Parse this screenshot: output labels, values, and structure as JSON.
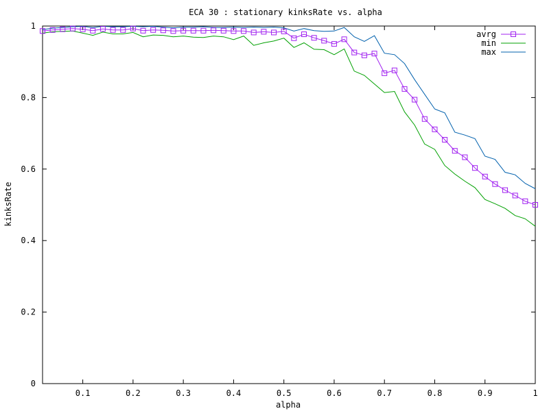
{
  "chart_data": {
    "type": "line",
    "title": "ECA 30 : stationary kinksRate vs. alpha",
    "xlabel": "alpha",
    "ylabel": "kinksRate",
    "xlim": [
      0.02,
      1.0
    ],
    "ylim": [
      0,
      1
    ],
    "xticks": [
      "0.1",
      "0.2",
      "0.3",
      "0.4",
      "0.5",
      "0.6",
      "0.7",
      "0.8",
      "0.9",
      "1"
    ],
    "yticks": [
      "0",
      "0.2",
      "0.4",
      "0.6",
      "0.8",
      "1"
    ],
    "grid": false,
    "legend_position": "top-right",
    "x": [
      0.02,
      0.04,
      0.06,
      0.08,
      0.1,
      0.12,
      0.14,
      0.16,
      0.18,
      0.2,
      0.22,
      0.24,
      0.26,
      0.28,
      0.3,
      0.32,
      0.34,
      0.36,
      0.38,
      0.4,
      0.42,
      0.44,
      0.46,
      0.48,
      0.5,
      0.52,
      0.54,
      0.56,
      0.58,
      0.6,
      0.62,
      0.64,
      0.66,
      0.68,
      0.7,
      0.72,
      0.74,
      0.76,
      0.78,
      0.8,
      0.82,
      0.84,
      0.86,
      0.88,
      0.9,
      0.92,
      0.94,
      0.96,
      0.98,
      1.0
    ],
    "series": [
      {
        "name": "avrg",
        "color": "#a020f0",
        "marker": "square",
        "values": [
          0.986,
          0.989,
          0.991,
          0.993,
          0.991,
          0.987,
          0.992,
          0.989,
          0.989,
          0.993,
          0.987,
          0.989,
          0.988,
          0.986,
          0.987,
          0.987,
          0.987,
          0.988,
          0.987,
          0.986,
          0.986,
          0.982,
          0.984,
          0.982,
          0.985,
          0.966,
          0.977,
          0.967,
          0.959,
          0.95,
          0.963,
          0.926,
          0.918,
          0.923,
          0.868,
          0.876,
          0.824,
          0.794,
          0.74,
          0.711,
          0.682,
          0.651,
          0.633,
          0.603,
          0.579,
          0.558,
          0.541,
          0.526,
          0.51,
          0.5
        ]
      },
      {
        "name": "min",
        "color": "#00a000",
        "values": [
          0.98,
          0.984,
          0.985,
          0.986,
          0.98,
          0.974,
          0.983,
          0.978,
          0.978,
          0.982,
          0.97,
          0.975,
          0.974,
          0.97,
          0.972,
          0.969,
          0.968,
          0.972,
          0.97,
          0.962,
          0.972,
          0.946,
          0.953,
          0.958,
          0.966,
          0.94,
          0.953,
          0.935,
          0.934,
          0.92,
          0.936,
          0.874,
          0.862,
          0.838,
          0.814,
          0.817,
          0.76,
          0.723,
          0.67,
          0.655,
          0.61,
          0.586,
          0.566,
          0.548,
          0.515,
          0.503,
          0.49,
          0.47,
          0.461,
          0.44
        ]
      },
      {
        "name": "max",
        "color": "#0060ad",
        "values": [
          0.99,
          0.994,
          0.996,
          0.998,
          0.999,
          0.996,
          0.999,
          0.998,
          0.998,
          0.999,
          0.998,
          0.999,
          0.997,
          0.995,
          0.997,
          0.997,
          0.998,
          0.996,
          0.996,
          0.997,
          0.996,
          0.997,
          0.996,
          0.997,
          0.995,
          0.986,
          0.993,
          0.987,
          0.985,
          0.986,
          0.996,
          0.97,
          0.957,
          0.973,
          0.924,
          0.92,
          0.895,
          0.85,
          0.809,
          0.768,
          0.757,
          0.703,
          0.695,
          0.685,
          0.636,
          0.627,
          0.591,
          0.584,
          0.56,
          0.545
        ]
      }
    ]
  }
}
